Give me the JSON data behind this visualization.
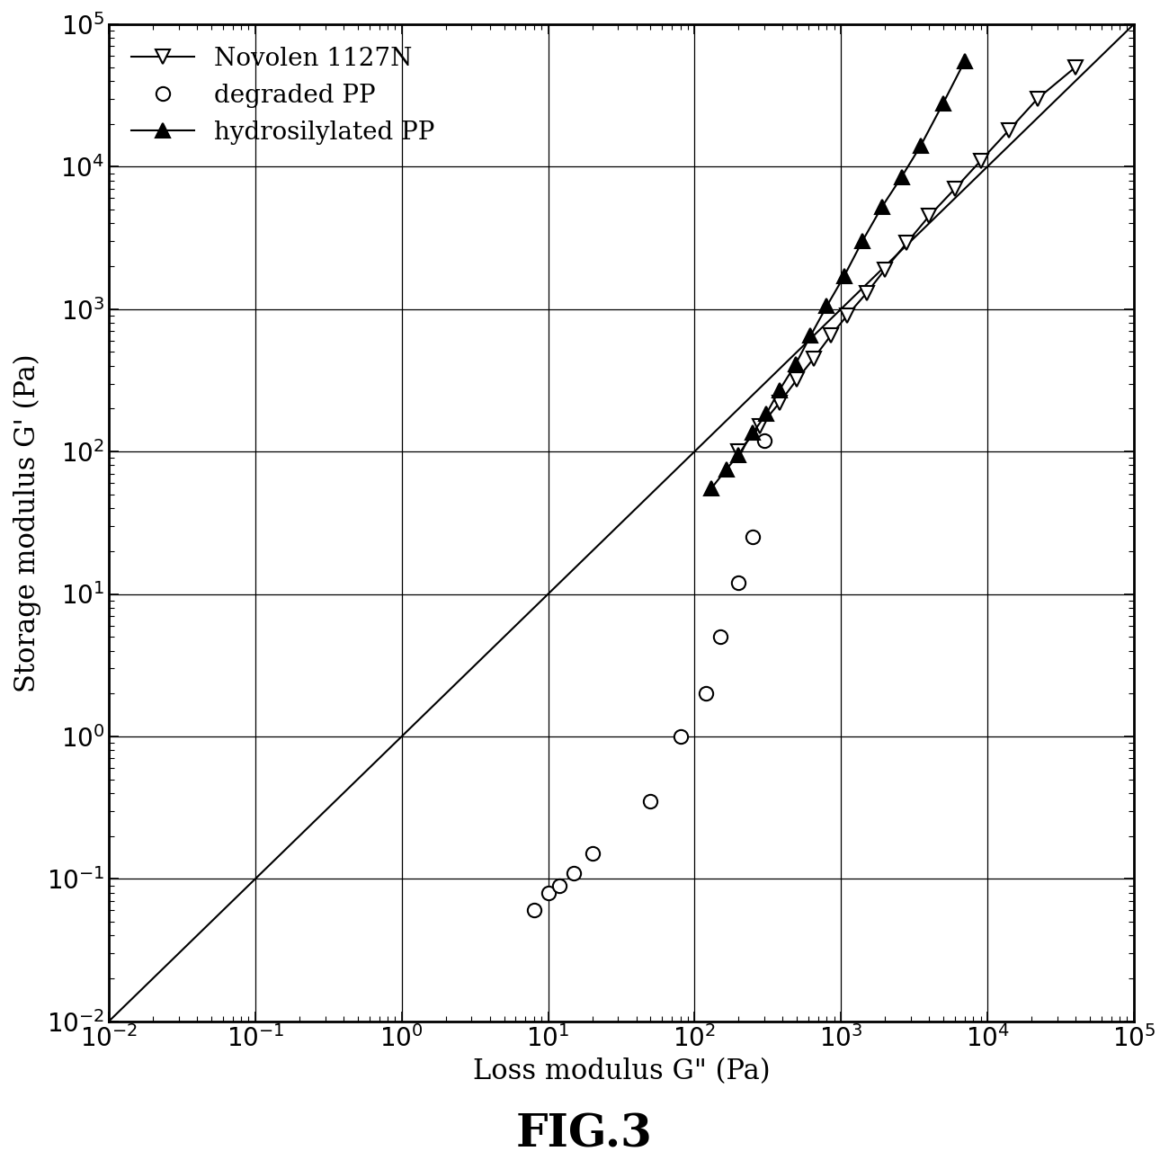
{
  "title": "FIG.3",
  "xlabel": "Loss modulus G\" (Pa)",
  "ylabel": "Storage modulus G' (Pa)",
  "xlim": [
    0.01,
    100000
  ],
  "ylim": [
    0.01,
    100000
  ],
  "novolen_x": [
    200,
    280,
    380,
    500,
    650,
    850,
    1100,
    1500,
    2000,
    2800,
    4000,
    6000,
    9000,
    14000,
    22000,
    40000
  ],
  "novolen_y": [
    100,
    150,
    220,
    320,
    450,
    650,
    900,
    1300,
    1900,
    2900,
    4500,
    7000,
    11000,
    18000,
    30000,
    50000
  ],
  "degraded_x": [
    8,
    10,
    12,
    15,
    20,
    50,
    80,
    120,
    150,
    200,
    250,
    300
  ],
  "degraded_y": [
    0.06,
    0.08,
    0.09,
    0.11,
    0.15,
    0.35,
    1.0,
    2.0,
    5.0,
    12,
    25,
    120
  ],
  "hydrosilylated_x": [
    130,
    165,
    200,
    250,
    310,
    380,
    490,
    620,
    800,
    1050,
    1400,
    1900,
    2600,
    3500,
    5000,
    7000
  ],
  "hydrosilylated_y": [
    55,
    75,
    95,
    135,
    185,
    270,
    410,
    650,
    1050,
    1700,
    3000,
    5200,
    8500,
    14000,
    28000,
    55000
  ],
  "background_color": "#ffffff",
  "marker_color": "#000000",
  "line_color": "#000000",
  "title_fontsize": 36,
  "label_fontsize": 22,
  "tick_fontsize": 20,
  "legend_fontsize": 20,
  "marker_size": 11,
  "line_width": 1.5
}
